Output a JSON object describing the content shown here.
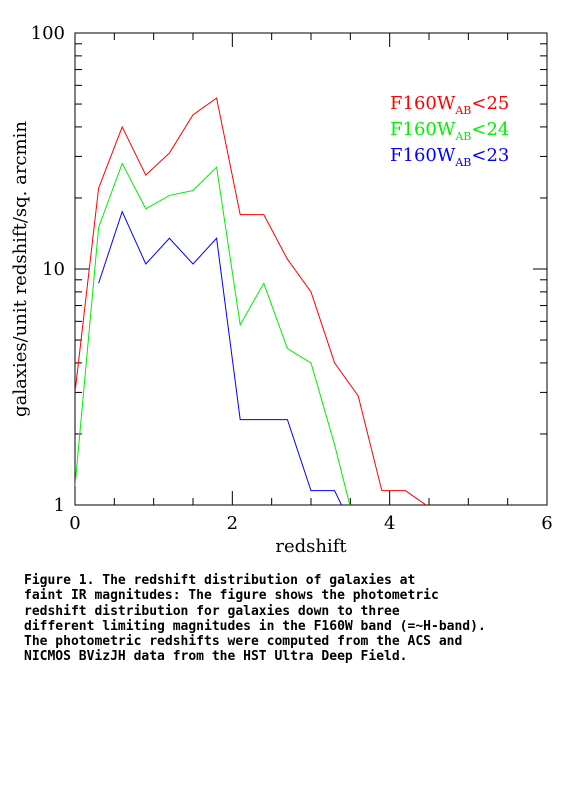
{
  "chart_data": {
    "type": "line",
    "xlabel": "redshift",
    "ylabel": "galaxies/unit redshift/sq. arcmin",
    "xlim": [
      0,
      6
    ],
    "ylim": [
      1,
      100
    ],
    "yscale": "log",
    "x_ticks": [
      "0",
      "2",
      "4",
      "6"
    ],
    "y_ticks": [
      "1",
      "10",
      "100"
    ],
    "grid": false,
    "legend_position": "top-right",
    "series": [
      {
        "legend_main": "F160W",
        "legend_sub": "AB",
        "legend_tail": "<25",
        "color": "#ff0000",
        "x": [
          0.0,
          0.3,
          0.6,
          0.9,
          1.2,
          1.5,
          1.8,
          2.1,
          2.4,
          2.7,
          3.0,
          3.3,
          3.6,
          3.9,
          4.2,
          4.5
        ],
        "y": [
          3.0,
          22.0,
          40.0,
          25.0,
          31.0,
          45.0,
          53.0,
          17.0,
          17.0,
          11.0,
          8.0,
          4.0,
          2.9,
          1.15,
          1.15,
          0.98
        ]
      },
      {
        "legend_main": "F160W",
        "legend_sub": "AB",
        "legend_tail": "<24",
        "color": "#00ee00",
        "x": [
          0.0,
          0.3,
          0.6,
          0.9,
          1.2,
          1.5,
          1.8,
          2.1,
          2.4,
          2.7,
          3.0,
          3.3,
          3.5
        ],
        "y": [
          1.2,
          15.0,
          28.0,
          18.0,
          20.5,
          21.5,
          27.0,
          5.8,
          8.7,
          4.6,
          4.0,
          1.8,
          0.98
        ]
      },
      {
        "legend_main": "F160W",
        "legend_sub": "AB",
        "legend_tail": "<23",
        "color": "#0000ff",
        "x": [
          0.3,
          0.6,
          0.9,
          1.2,
          1.5,
          1.8,
          2.1,
          2.4,
          2.7,
          3.0,
          3.3,
          3.4
        ],
        "y": [
          8.7,
          17.5,
          10.5,
          13.5,
          10.5,
          13.5,
          2.3,
          2.3,
          2.3,
          1.15,
          1.15,
          0.98
        ]
      }
    ]
  },
  "caption": {
    "lines": [
      "Figure 1. The redshift distribution of galaxies at",
      "faint IR magnitudes: The figure shows the photometric",
      "redshift distribution for galaxies down to three",
      "different limiting magnitudes in the F160W band (=~H-band).",
      "The photometric redshifts were computed from the ACS and",
      "NICMOS BVizJH data from the HST Ultra Deep Field."
    ]
  }
}
